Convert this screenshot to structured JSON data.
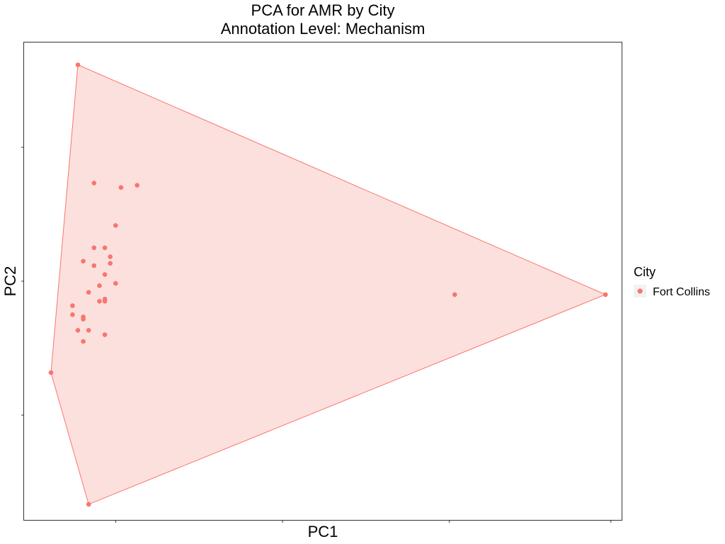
{
  "chart_data": {
    "type": "scatter",
    "title": "PCA for AMR by City",
    "subtitle": "Annotation Level: Mechanism",
    "xlabel": "PC1",
    "ylabel": "PC2",
    "xlim": [
      -0.11,
      1.0
    ],
    "ylim": [
      -1.07,
      1.07
    ],
    "x_ticks": [
      0.06,
      0.37,
      0.68,
      0.98
    ],
    "y_ticks": [
      -0.6,
      0.0,
      0.6
    ],
    "tick_labels_shown": false,
    "grid": false,
    "legend": {
      "title": "City",
      "position": "right"
    },
    "series": [
      {
        "name": "Fort Collins",
        "color": "#F8766D",
        "fill": "#FCE0DE",
        "hull": [
          [
            -0.01,
            0.97
          ],
          [
            0.97,
            -0.06
          ],
          [
            0.01,
            -1.0
          ],
          [
            -0.06,
            -0.41
          ]
        ],
        "points": [
          [
            -0.01,
            0.97
          ],
          [
            0.97,
            -0.06
          ],
          [
            0.01,
            -1.0
          ],
          [
            -0.06,
            -0.41
          ],
          [
            0.69,
            -0.06
          ],
          [
            0.02,
            0.44
          ],
          [
            0.07,
            0.42
          ],
          [
            0.1,
            0.43
          ],
          [
            0.06,
            0.25
          ],
          [
            0.04,
            0.15
          ],
          [
            0.02,
            0.15
          ],
          [
            0.05,
            0.11
          ],
          [
            0.0,
            0.09
          ],
          [
            0.05,
            0.08
          ],
          [
            0.02,
            0.07
          ],
          [
            0.04,
            0.03
          ],
          [
            0.03,
            -0.02
          ],
          [
            0.06,
            -0.01
          ],
          [
            0.01,
            -0.05
          ],
          [
            0.03,
            -0.09
          ],
          [
            0.04,
            -0.09
          ],
          [
            0.04,
            -0.08
          ],
          [
            -0.02,
            -0.11
          ],
          [
            -0.02,
            -0.15
          ],
          [
            0.0,
            -0.16
          ],
          [
            0.0,
            -0.17
          ],
          [
            -0.01,
            -0.22
          ],
          [
            0.01,
            -0.22
          ],
          [
            0.04,
            -0.24
          ],
          [
            0.0,
            -0.27
          ]
        ]
      }
    ]
  }
}
